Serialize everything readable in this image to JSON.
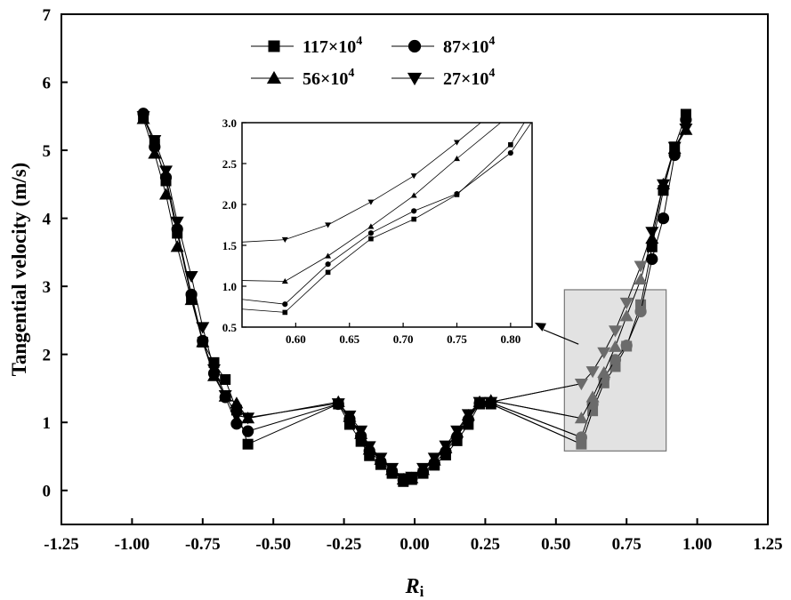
{
  "chart_data": {
    "type": "line",
    "title": "",
    "xlabel": "R",
    "xlabel_sub": "i",
    "ylabel": "Tangential velocity (m/s)",
    "xlim": [
      -1.25,
      1.25
    ],
    "ylim": [
      -0.5,
      7
    ],
    "x_ticks": [
      "-1.25",
      "-1.00",
      "-0.75",
      "-0.50",
      "-0.25",
      "0.00",
      "0.25",
      "0.50",
      "0.75",
      "1.00",
      "1.25"
    ],
    "y_ticks": [
      "0",
      "1",
      "2",
      "3",
      "4",
      "5",
      "6",
      "7"
    ],
    "grid": false,
    "legend_position": "top-center",
    "exponent": "4",
    "series": [
      {
        "name": "117×10",
        "marker": "square",
        "x": [
          -0.96,
          -0.92,
          -0.88,
          -0.84,
          -0.79,
          -0.75,
          -0.71,
          -0.67,
          -0.63,
          -0.59,
          -0.27,
          -0.23,
          -0.19,
          -0.16,
          -0.12,
          -0.08,
          -0.04,
          -0.01,
          0.03,
          0.07,
          0.11,
          0.15,
          0.19,
          0.23,
          0.27,
          0.59,
          0.63,
          0.67,
          0.71,
          0.75,
          0.8,
          0.84,
          0.88,
          0.92,
          0.96
        ],
        "y": [
          5.48,
          5.1,
          4.55,
          3.78,
          2.84,
          2.18,
          1.88,
          1.63,
          1.18,
          0.68,
          1.27,
          0.97,
          0.72,
          0.51,
          0.38,
          0.25,
          0.13,
          0.16,
          0.25,
          0.37,
          0.52,
          0.73,
          0.97,
          1.27,
          1.27,
          0.68,
          1.17,
          1.58,
          1.82,
          2.12,
          2.73,
          3.58,
          4.41,
          5.05,
          5.53
        ]
      },
      {
        "name": "87×10",
        "marker": "circle",
        "x": [
          -0.96,
          -0.92,
          -0.88,
          -0.84,
          -0.79,
          -0.75,
          -0.71,
          -0.67,
          -0.63,
          -0.59,
          -0.27,
          -0.23,
          -0.19,
          -0.16,
          -0.12,
          -0.08,
          -0.04,
          -0.01,
          0.03,
          0.07,
          0.11,
          0.15,
          0.19,
          0.23,
          0.27,
          0.59,
          0.63,
          0.67,
          0.71,
          0.75,
          0.8,
          0.84,
          0.88,
          0.92,
          0.96
        ],
        "y": [
          5.54,
          5.05,
          4.6,
          3.84,
          2.88,
          2.2,
          1.72,
          1.37,
          0.98,
          0.87,
          1.27,
          1.05,
          0.8,
          0.58,
          0.42,
          0.28,
          0.15,
          0.17,
          0.27,
          0.4,
          0.57,
          0.79,
          1.04,
          1.28,
          1.29,
          0.78,
          1.27,
          1.65,
          1.92,
          2.13,
          2.63,
          3.4,
          4.0,
          4.93,
          5.45
        ]
      },
      {
        "name": "56×10",
        "marker": "triangle-up",
        "x": [
          -0.96,
          -0.92,
          -0.88,
          -0.84,
          -0.79,
          -0.75,
          -0.71,
          -0.67,
          -0.63,
          -0.59,
          -0.27,
          -0.23,
          -0.19,
          -0.16,
          -0.12,
          -0.08,
          -0.04,
          -0.01,
          0.03,
          0.07,
          0.11,
          0.15,
          0.19,
          0.23,
          0.27,
          0.59,
          0.63,
          0.67,
          0.71,
          0.75,
          0.8,
          0.84,
          0.88,
          0.92,
          0.96
        ],
        "y": [
          5.46,
          4.95,
          4.35,
          3.58,
          2.8,
          2.18,
          1.68,
          1.38,
          1.28,
          1.06,
          1.3,
          1.08,
          0.83,
          0.6,
          0.45,
          0.3,
          0.16,
          0.18,
          0.3,
          0.44,
          0.62,
          0.85,
          1.1,
          1.3,
          1.32,
          1.06,
          1.37,
          1.73,
          2.11,
          2.56,
          3.1,
          3.7,
          4.5,
          5.02,
          5.3
        ]
      },
      {
        "name": "27×10",
        "marker": "triangle-down",
        "x": [
          -0.96,
          -0.92,
          -0.88,
          -0.84,
          -0.79,
          -0.75,
          -0.71,
          -0.67,
          -0.63,
          -0.59,
          -0.27,
          -0.23,
          -0.19,
          -0.16,
          -0.12,
          -0.08,
          -0.04,
          -0.01,
          0.03,
          0.07,
          0.11,
          0.15,
          0.19,
          0.23,
          0.27,
          0.59,
          0.63,
          0.67,
          0.71,
          0.75,
          0.8,
          0.84,
          0.88,
          0.92,
          0.96
        ],
        "y": [
          5.5,
          5.15,
          4.7,
          3.95,
          3.15,
          2.4,
          1.78,
          1.4,
          1.1,
          1.07,
          1.28,
          1.1,
          0.88,
          0.65,
          0.48,
          0.33,
          0.18,
          0.2,
          0.33,
          0.48,
          0.66,
          0.88,
          1.12,
          1.3,
          1.3,
          1.57,
          1.75,
          2.03,
          2.35,
          2.76,
          3.3,
          3.8,
          4.5,
          5.05,
          5.32
        ]
      }
    ],
    "inset": {
      "xlim": [
        0.55,
        0.82
      ],
      "ylim": [
        0.5,
        3.0
      ],
      "x_ticks": [
        "0.60",
        "0.65",
        "0.70",
        "0.75",
        "0.80"
      ],
      "y_ticks": [
        "0.5",
        "1.0",
        "1.5",
        "2.0",
        "2.5",
        "3.0"
      ]
    },
    "highlight_box": {
      "xlim": [
        0.53,
        0.89
      ],
      "ylim": [
        0.58,
        2.95
      ]
    }
  }
}
